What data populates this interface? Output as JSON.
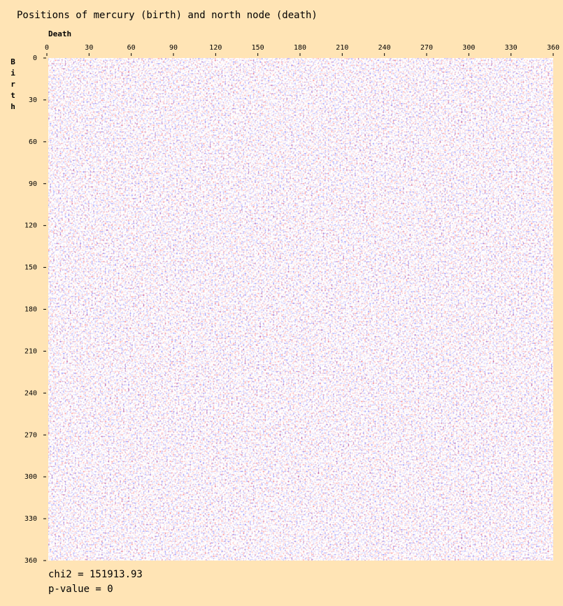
{
  "chart_data": {
    "type": "heatmap",
    "title": "Positions of mercury (birth) and north node (death)",
    "xlabel": "Death",
    "ylabel": "Birth",
    "xlim": [
      0,
      360
    ],
    "ylim": [
      0,
      360
    ],
    "xticks": [
      0,
      30,
      60,
      90,
      120,
      150,
      180,
      210,
      240,
      270,
      300,
      330,
      360
    ],
    "yticks": [
      0,
      30,
      60,
      90,
      120,
      150,
      180,
      210,
      240,
      270,
      300,
      330,
      360
    ],
    "annotations": [
      "chi2 = 151913.93",
      "p-value = 0"
    ]
  }
}
